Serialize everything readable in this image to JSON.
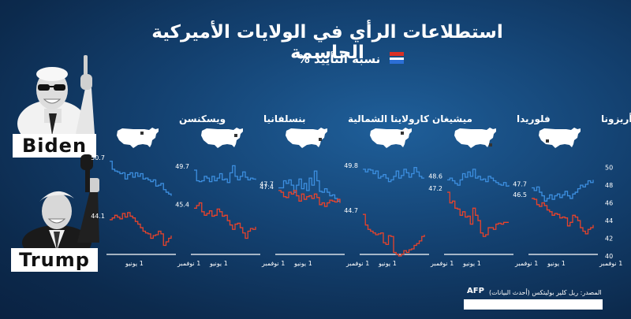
{
  "title": "استطلاعات الرأي في الولايات الأميركية الحاسمة",
  "subtitle": "نسبة التأييد %",
  "candidates": {
    "biden": "Biden",
    "trump": "Trump"
  },
  "source": "المصدر: ريل كلير بوليتكس (أحدث البيانات)",
  "logo": "AFP",
  "colors": {
    "biden": "#3d8fe0",
    "trump": "#e8432b",
    "map": "#ffffff"
  },
  "chart_data": [
    {
      "type": "line",
      "state": "أريزونا",
      "x_ticks": [
        "1 نوفمبر",
        "1 يونيو"
      ],
      "y_ticks": [
        40,
        42,
        44,
        46,
        48,
        50
      ],
      "ylim": [
        40,
        50.5
      ],
      "series": [
        {
          "name": "Biden",
          "start_label": "47.7",
          "values": [
            47.7,
            47.4,
            47.8,
            47.2,
            46.8,
            46.2,
            46.5,
            46.9,
            46.4,
            46.8,
            47.0,
            46.6,
            46.9,
            47.3,
            46.8,
            46.5,
            47.0,
            47.2,
            47.6,
            48.0,
            47.8,
            48.1,
            48.5,
            48.3,
            48.6
          ]
        },
        {
          "name": "Trump",
          "start_label": "46.5",
          "values": [
            46.5,
            46.4,
            45.8,
            45.6,
            46.0,
            45.7,
            45.2,
            45.0,
            44.6,
            44.8,
            44.7,
            44.3,
            44.4,
            44.3,
            43.4,
            43.8,
            44.6,
            44.4,
            44.0,
            43.2,
            42.8,
            42.5,
            43.0,
            43.2,
            43.5
          ]
        }
      ]
    },
    {
      "type": "line",
      "state": "فلوريدا",
      "x_ticks": [
        "1 نوفمبر",
        "1 يونيو"
      ],
      "ylim": [
        40,
        50.5
      ],
      "series": [
        {
          "name": "Biden",
          "start_label": "48.6",
          "values": [
            48.6,
            48.8,
            48.5,
            48.2,
            48.0,
            48.6,
            49.3,
            48.9,
            49.5,
            49.0,
            49.8,
            48.8,
            49.0,
            48.6,
            48.7,
            48.4,
            49.0,
            48.8,
            48.5,
            48.3,
            48.1,
            48.0,
            48.3,
            47.9,
            48.0
          ]
        },
        {
          "name": "Trump",
          "start_label": "47.2",
          "values": [
            47.2,
            46.0,
            46.2,
            45.4,
            45.3,
            44.6,
            45.0,
            44.4,
            44.5,
            43.6,
            45.4,
            44.6,
            44.0,
            42.6,
            42.2,
            42.4,
            43.2,
            43.2,
            43.0,
            43.6,
            43.7,
            43.6,
            43.8,
            43.8,
            43.8
          ]
        }
      ]
    },
    {
      "type": "line",
      "state": "ميشيغان",
      "x_ticks": [
        "1 نوفمبر",
        "1 يونيو"
      ],
      "ylim": [
        40,
        50.5
      ],
      "series": [
        {
          "name": "Biden",
          "start_label": "49.8",
          "values": [
            49.8,
            49.5,
            49.8,
            49.7,
            49.3,
            49.6,
            48.8,
            49.0,
            49.2,
            48.8,
            48.4,
            48.6,
            49.0,
            49.6,
            48.8,
            49.1,
            49.8,
            49.4,
            48.9,
            49.3,
            50.0,
            49.5,
            49.0,
            48.8,
            48.8
          ]
        },
        {
          "name": "Trump",
          "start_label": "44.7",
          "values": [
            44.7,
            43.5,
            43.0,
            42.8,
            42.6,
            42.4,
            42.5,
            42.6,
            41.5,
            41.3,
            42.3,
            42.2,
            40.4,
            40.2,
            40.0,
            40.2,
            40.6,
            40.4,
            40.7,
            40.8,
            41.2,
            41.4,
            41.7,
            42.2,
            42.4
          ]
        }
      ]
    },
    {
      "type": "line",
      "state": "كارولاينا الشمالية",
      "x_ticks": [
        "1 نوفمبر",
        "1 يونيو"
      ],
      "ylim": [
        40,
        50.5
      ],
      "series": [
        {
          "name": "Biden",
          "start_label": "47.7",
          "values": [
            47.7,
            47.7,
            48.5,
            48.2,
            48.6,
            48.0,
            47.2,
            48.0,
            48.7,
            47.6,
            48.2,
            47.4,
            48.8,
            48.0,
            49.6,
            48.5,
            47.3,
            47.2,
            47.6,
            47.2,
            46.8,
            46.9,
            46.5,
            46.2,
            46.1
          ]
        },
        {
          "name": "Trump",
          "start_label": "47.4",
          "values": [
            47.4,
            47.2,
            46.7,
            46.6,
            47.2,
            47.0,
            47.4,
            46.8,
            46.2,
            47.0,
            46.4,
            46.7,
            46.8,
            46.5,
            47.0,
            46.6,
            45.8,
            46.0,
            45.6,
            46.0,
            46.3,
            46.2,
            46.1,
            46.4,
            46.0
          ]
        }
      ]
    },
    {
      "type": "line",
      "state": "بنسلفانيا",
      "x_ticks": [
        "1 نوفمبر",
        "1 يونيو"
      ],
      "ylim": [
        40,
        50.5
      ],
      "series": [
        {
          "name": "Biden",
          "start_label": "49.7",
          "values": [
            49.7,
            48.5,
            48.4,
            48.5,
            49.0,
            48.8,
            48.4,
            49.0,
            48.5,
            48.8,
            49.3,
            48.6,
            48.7,
            48.3,
            49.4,
            50.2,
            49.0,
            48.6,
            49.0,
            49.5,
            48.9,
            48.6,
            48.8,
            48.7,
            48.6
          ]
        },
        {
          "name": "Trump",
          "start_label": "45.4",
          "values": [
            45.4,
            45.7,
            46.0,
            45.0,
            44.6,
            44.8,
            45.1,
            44.5,
            44.6,
            45.3,
            45.0,
            44.5,
            44.6,
            44.0,
            43.5,
            43.0,
            43.6,
            43.7,
            43.2,
            42.6,
            42.0,
            42.8,
            43.1,
            43.0,
            43.3
          ]
        }
      ]
    },
    {
      "type": "line",
      "state": "ويسكنسن",
      "x_ticks": [
        "1 نوفمبر",
        "1 يونيو"
      ],
      "ylim": [
        40,
        50.5
      ],
      "series": [
        {
          "name": "Biden",
          "start_label": "50.7",
          "values": [
            50.7,
            49.8,
            49.6,
            49.5,
            49.3,
            49.4,
            48.7,
            49.2,
            49.4,
            48.9,
            49.4,
            49.0,
            49.3,
            48.7,
            48.8,
            48.6,
            48.4,
            48.6,
            47.9,
            48.0,
            48.2,
            47.5,
            47.2,
            47.0,
            46.8
          ]
        },
        {
          "name": "Trump",
          "start_label": "44.1",
          "values": [
            44.1,
            44.3,
            44.6,
            44.4,
            44.2,
            44.8,
            44.4,
            44.9,
            44.5,
            44.3,
            43.9,
            43.6,
            43.2,
            42.8,
            42.6,
            42.5,
            42.0,
            42.3,
            42.4,
            42.8,
            42.5,
            41.2,
            41.6,
            42.0,
            42.3
          ]
        }
      ]
    }
  ]
}
